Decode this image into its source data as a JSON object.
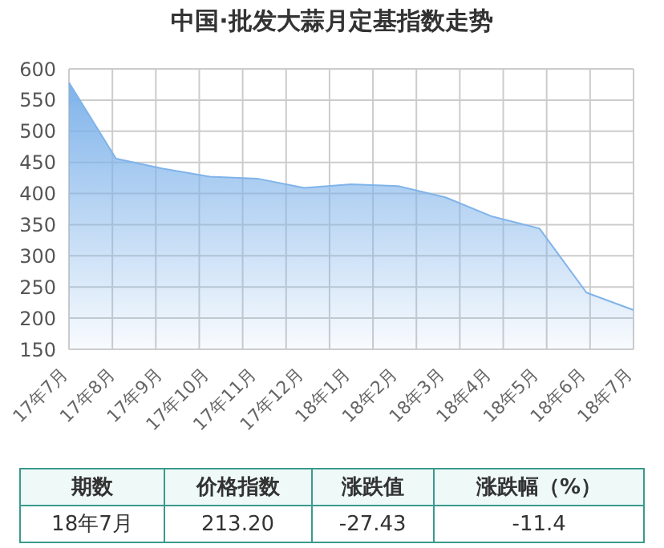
{
  "chart_data": {
    "type": "area",
    "title": "中国·批发大蒜月定基指数走势",
    "categories": [
      "17年7月",
      "17年8月",
      "17年9月",
      "17年10月",
      "17年11月",
      "17年12月",
      "18年1月",
      "18年2月",
      "18年3月",
      "18年4月",
      "18年5月",
      "18年6月",
      "18年7月"
    ],
    "series": [
      {
        "color": "#7fb3ea",
        "values": [
          578,
          456,
          440,
          427,
          424,
          409,
          415,
          412,
          394,
          363,
          344,
          241,
          213
        ]
      }
    ],
    "ylim": [
      150,
      600
    ],
    "yticks": [
      150,
      200,
      250,
      300,
      350,
      400,
      450,
      500,
      550,
      600
    ],
    "grid": true,
    "legend": false,
    "marker": "none",
    "annotations": [
      "期数",
      "价格指数",
      "涨跌值",
      "涨跌幅（%）",
      "18年7月",
      "213.20",
      "-27.43",
      "-11.4"
    ]
  }
}
